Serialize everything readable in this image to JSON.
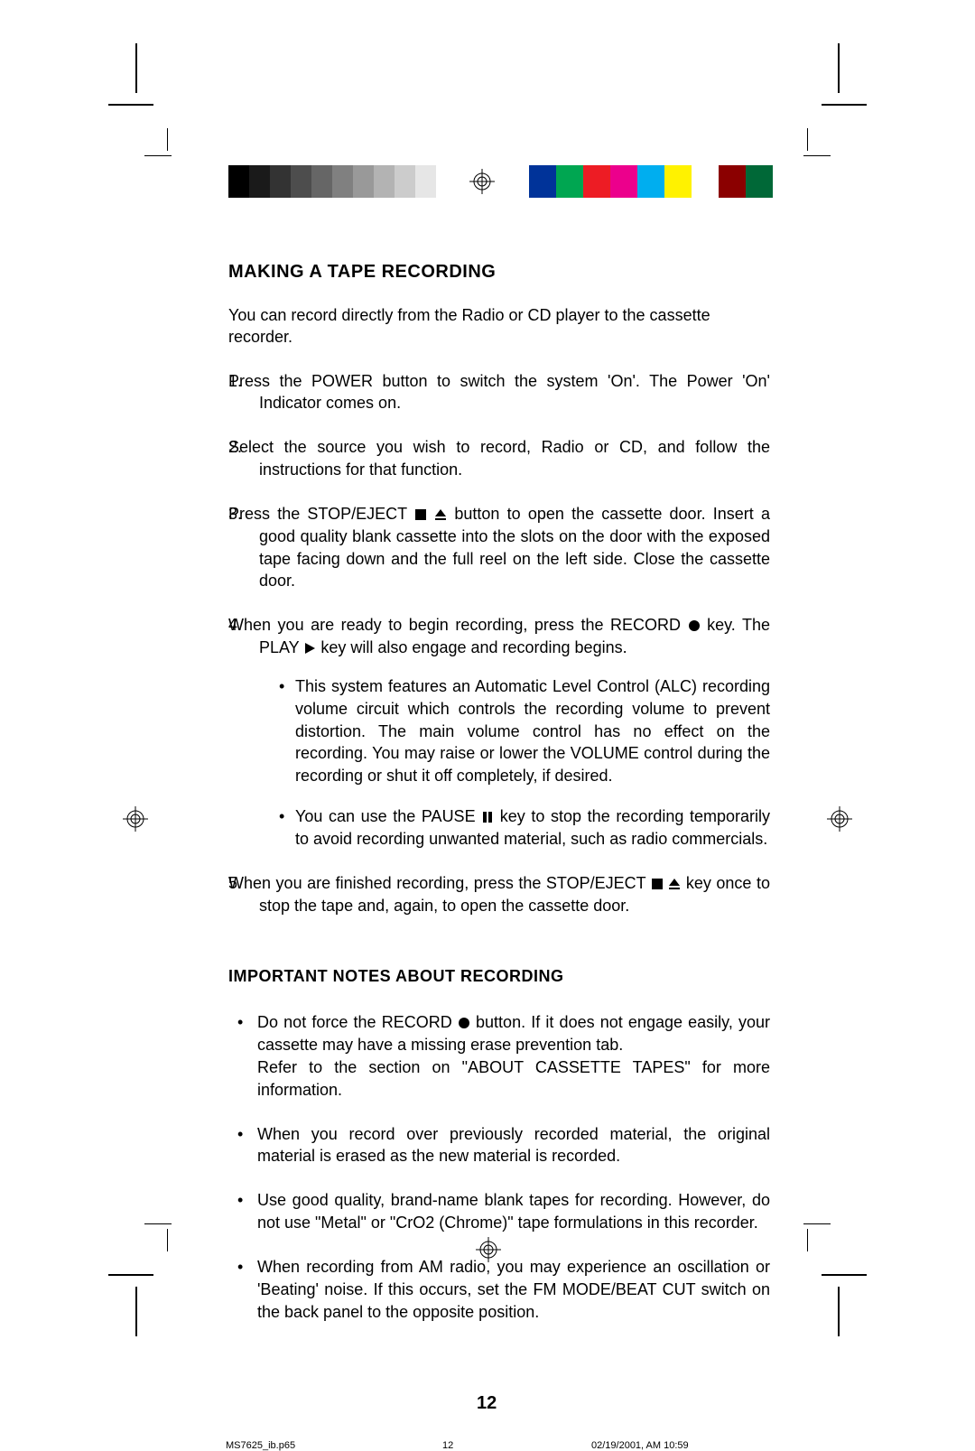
{
  "colorbar": {
    "grays": [
      "#000000",
      "#1a1a1a",
      "#333333",
      "#4d4d4d",
      "#666666",
      "#808080",
      "#999999",
      "#b3b3b3",
      "#cccccc",
      "#e6e6e6",
      "#ffffff"
    ],
    "colors": [
      "#003399",
      "#00a651",
      "#ed1c24",
      "#ec008c",
      "#00aeef",
      "#fff200",
      "#ffffff",
      "#8b0000",
      "#006837"
    ]
  },
  "content": {
    "heading": "MAKING A TAPE RECORDING",
    "intro": "You can record directly from the Radio or CD player to the cassette recorder.",
    "steps": [
      {
        "n": "1.",
        "text": "Press the POWER button to switch the system 'On'. The Power 'On' Indicator comes on."
      },
      {
        "n": "2.",
        "text": "Select the source you wish to record, Radio or CD, and follow the instructions for that function."
      },
      {
        "n": "3.",
        "pre": "Press the STOP/EJECT ",
        "post": " button to open the cassette door. Insert a good quality blank cassette into the slots on the door with the exposed tape facing down and the full reel on the left side. Close the cassette door.",
        "syms": [
          "stop",
          "eject"
        ]
      },
      {
        "n": "4.",
        "pre": "When you are ready to begin recording, press the RECORD ",
        "mid": " key. The PLAY ",
        "post": " key will also engage and recording begins.",
        "sym1": "record",
        "sym2": "play",
        "nested": [
          {
            "text": "This system features an Automatic Level Control (ALC) recording volume circuit which controls the recording volume to prevent distortion. The main volume control has no effect on the recording. You may raise or lower the VOLUME control during the recording or shut it off completely, if desired."
          },
          {
            "pre": "You can use the PAUSE ",
            "post": " key to stop the recording temporarily to avoid recording unwanted material, such as radio commercials.",
            "sym": "pause"
          }
        ]
      },
      {
        "n": "5.",
        "pre": "When you are finished recording, press the STOP/EJECT ",
        "post": " key once to stop the tape and, again, to open the cassette door.",
        "syms": [
          "stop",
          "eject"
        ]
      }
    ],
    "subheading": "IMPORTANT NOTES ABOUT RECORDING",
    "notes": [
      {
        "pre": "Do not force the RECORD ",
        "post": " button. If it does not engage easily, your cassette may have a missing erase prevention tab.",
        "sym": "record",
        "extra": "Refer to the section on \"ABOUT CASSETTE TAPES\" for more information."
      },
      {
        "text": "When you record over previously recorded material, the original material is erased as the new material is recorded."
      },
      {
        "text": "Use good quality, brand-name blank tapes for recording. However, do not use \"Metal\" or \"CrO2 (Chrome)\" tape formulations in this recorder."
      },
      {
        "text": "When recording from AM radio, you may experience an oscillation or 'Beating' noise. If this occurs, set the FM MODE/BEAT CUT switch on the back panel to the opposite position."
      }
    ]
  },
  "page_number": "12",
  "footer": {
    "file": "MS7625_ib.p65",
    "page": "12",
    "timestamp": "02/19/2001, AM 10:59"
  }
}
